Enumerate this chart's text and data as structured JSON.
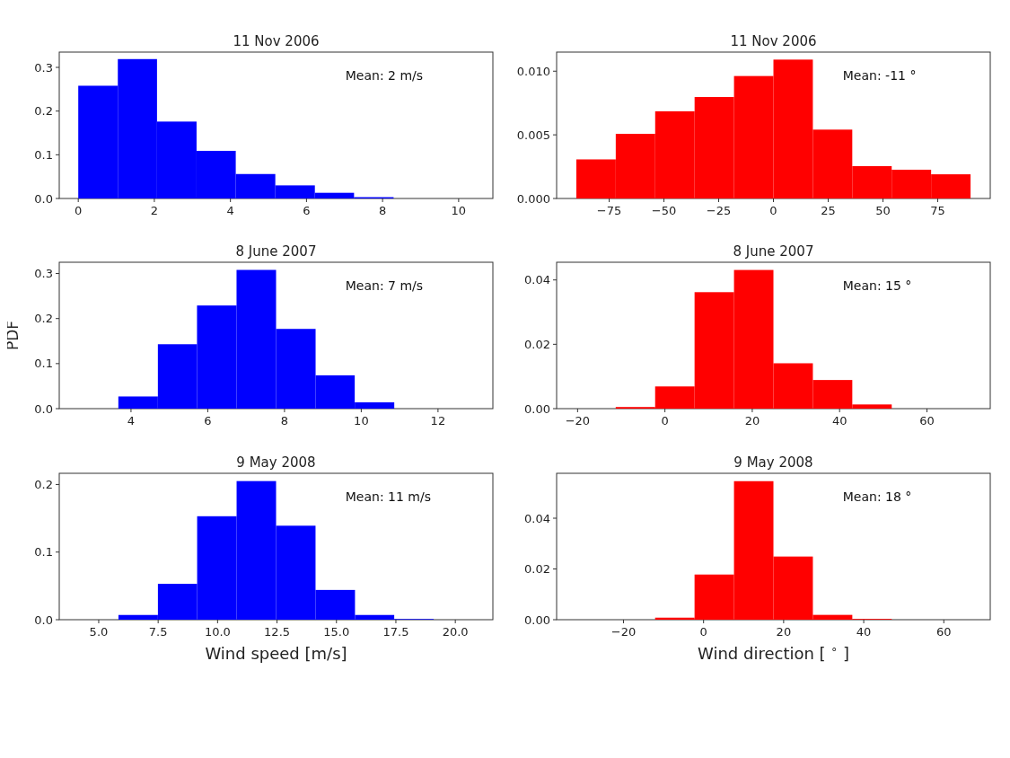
{
  "chart_data": [
    {
      "type": "histogram",
      "title": "11 Nov 2006",
      "bins": [
        0,
        1.04,
        2.07,
        3.11,
        4.14,
        5.18,
        6.22,
        7.25,
        8.29,
        9.32,
        10.36
      ],
      "values": [
        0.258,
        0.319,
        0.176,
        0.109,
        0.056,
        0.03,
        0.013,
        0.003,
        0,
        0
      ],
      "color": "#0000ff",
      "xlim": [
        -0.5,
        10.9
      ],
      "ylim": [
        0,
        0.335
      ],
      "xticks": [
        0,
        2,
        4,
        6,
        8,
        10
      ],
      "yticks": [
        {
          "value": 0,
          "label": "0.0"
        },
        {
          "value": 0.1,
          "label": "0.1"
        },
        {
          "value": 0.2,
          "label": "0.2"
        },
        {
          "value": 0.3,
          "label": "0.3"
        }
      ],
      "annotations": [
        "Mean: 2 m/s"
      ]
    },
    {
      "type": "histogram",
      "title": "11 Nov 2006",
      "bins": [
        -90,
        -72,
        -54,
        -36,
        -18,
        0,
        18,
        36,
        54,
        72,
        90
      ],
      "values": [
        0.00307,
        0.00508,
        0.00685,
        0.00797,
        0.00962,
        0.01091,
        0.00541,
        0.00254,
        0.00226,
        0.0019
      ],
      "color": "#ff0000",
      "xlim": [
        -99,
        99
      ],
      "ylim": [
        0,
        0.0115
      ],
      "xticks": [
        {
          "value": -75,
          "label": "−75"
        },
        {
          "value": -50,
          "label": "−50"
        },
        {
          "value": -25,
          "label": "−25"
        },
        0,
        25,
        50,
        75
      ],
      "yticks": [
        {
          "value": 0,
          "label": "0.000"
        },
        {
          "value": 0.005,
          "label": "0.005"
        },
        {
          "value": 0.01,
          "label": "0.010"
        }
      ],
      "annotations": [
        "Mean: -11 °"
      ]
    },
    {
      "type": "histogram",
      "title": "8 June 2007",
      "ylabel": "PDF",
      "bins": [
        2.64,
        3.67,
        4.7,
        5.72,
        6.75,
        7.78,
        8.81,
        9.83,
        10.86,
        11.89,
        12.91
      ],
      "values": [
        0,
        0.027,
        0.143,
        0.229,
        0.308,
        0.177,
        0.074,
        0.014,
        0,
        0
      ],
      "color": "#0000ff",
      "xlim": [
        2.13,
        13.43
      ],
      "ylim": [
        0,
        0.325
      ],
      "xticks": [
        4,
        6,
        8,
        10,
        12
      ],
      "yticks": [
        {
          "value": 0,
          "label": "0.0"
        },
        {
          "value": 0.1,
          "label": "0.1"
        },
        {
          "value": 0.2,
          "label": "0.2"
        },
        {
          "value": 0.3,
          "label": "0.3"
        }
      ],
      "annotations": [
        "Mean: 7 m/s"
      ]
    },
    {
      "type": "histogram",
      "title": "8 June 2007",
      "bins": [
        -20.3,
        -11.27,
        -2.24,
        6.79,
        15.82,
        24.85,
        33.88,
        42.91,
        51.94,
        60.97,
        70
      ],
      "values": [
        0,
        0.0005,
        0.0069,
        0.0362,
        0.0431,
        0.0141,
        0.0089,
        0.0013,
        0,
        0
      ],
      "color": "#ff0000",
      "xlim": [
        -24.8,
        74.5
      ],
      "ylim": [
        0,
        0.0455
      ],
      "xticks": [
        {
          "value": -20,
          "label": "−20"
        },
        0,
        20,
        40,
        60
      ],
      "yticks": [
        {
          "value": 0,
          "label": "0.00"
        },
        {
          "value": 0.02,
          "label": "0.02"
        },
        {
          "value": 0.04,
          "label": "0.04"
        }
      ],
      "annotations": [
        "Mean: 15 °"
      ]
    },
    {
      "type": "histogram",
      "title": "9 May 2008",
      "xlabel": "Wind speed [m/s]",
      "bins": [
        4.17,
        5.83,
        7.49,
        9.14,
        10.8,
        12.46,
        14.12,
        15.78,
        17.43,
        19.09,
        20.75
      ],
      "values": [
        0,
        0.007,
        0.053,
        0.153,
        0.205,
        0.139,
        0.044,
        0.007,
        0.001,
        0
      ],
      "color": "#0000ff",
      "xlim": [
        3.34,
        21.58
      ],
      "ylim": [
        0,
        0.2165
      ],
      "xticks": [
        {
          "value": 5,
          "label": "5.0"
        },
        {
          "value": 7.5,
          "label": "7.5"
        },
        {
          "value": 10,
          "label": "10.0"
        },
        {
          "value": 12.5,
          "label": "12.5"
        },
        {
          "value": 15,
          "label": "15.0"
        },
        {
          "value": 17.5,
          "label": "17.5"
        },
        {
          "value": 20,
          "label": "20.0"
        }
      ],
      "yticks": [
        {
          "value": 0,
          "label": "0.0"
        },
        {
          "value": 0.1,
          "label": "0.1"
        },
        {
          "value": 0.2,
          "label": "0.2"
        }
      ],
      "annotations": [
        "Mean: 11 m/s"
      ]
    },
    {
      "type": "histogram",
      "title": "9 May 2008",
      "xlabel": "Wind direction [ $^{∘}$ ]",
      "bins": [
        -31.8,
        -21.95,
        -12.1,
        -2.25,
        7.6,
        17.45,
        27.3,
        37.15,
        47,
        56.85,
        66.7
      ],
      "values": [
        0,
        0,
        0.0008,
        0.0178,
        0.0546,
        0.0249,
        0.0019,
        0.0003,
        0,
        0
      ],
      "color": "#ff0000",
      "xlim": [
        -36.7,
        71.6
      ],
      "ylim": [
        0,
        0.0577
      ],
      "xticks": [
        {
          "value": -20,
          "label": "−20"
        },
        0,
        20,
        40,
        60
      ],
      "yticks": [
        {
          "value": 0,
          "label": "0.00"
        },
        {
          "value": 0.02,
          "label": "0.02"
        },
        {
          "value": 0.04,
          "label": "0.04"
        }
      ],
      "annotations": [
        "Mean: 18 °"
      ]
    }
  ]
}
